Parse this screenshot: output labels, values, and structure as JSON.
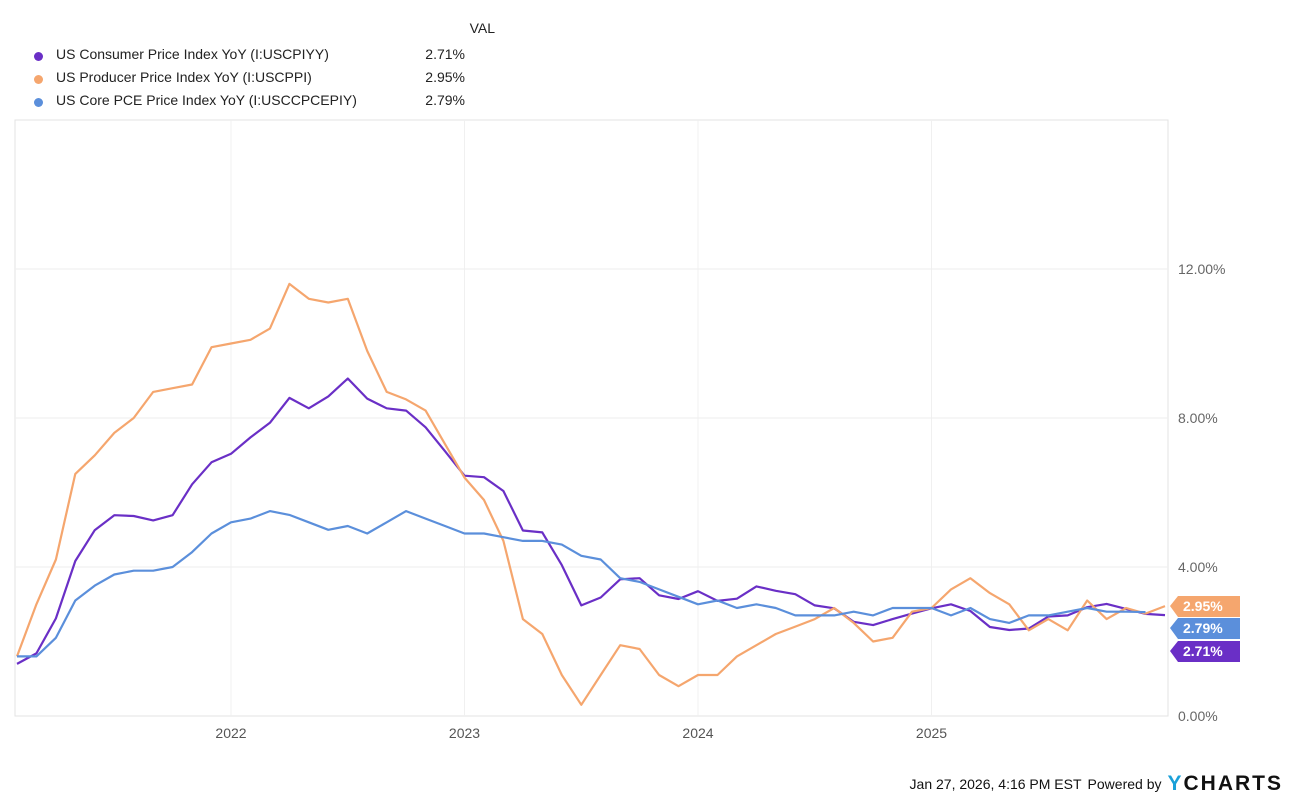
{
  "chart_data": {
    "type": "line",
    "title": "",
    "xlabel": "",
    "ylabel": "",
    "x_start": "2021-01",
    "x_frequency": "monthly",
    "x_ticks": [
      "2022",
      "2023",
      "2024",
      "2025"
    ],
    "y_ticks": [
      "0.00%",
      "4.00%",
      "8.00%",
      "12.00%"
    ],
    "ylim": [
      0,
      16
    ],
    "grid": true,
    "legend_placement": "top-left",
    "legend_header": "VAL",
    "series": [
      {
        "name": "US Consumer Price Index YoY (I:USCPIYY)",
        "last": "2.71%",
        "color": "#6a2fc6",
        "values": [
          1.4,
          1.68,
          2.62,
          4.16,
          4.99,
          5.39,
          5.37,
          5.25,
          5.39,
          6.22,
          6.81,
          7.04,
          7.48,
          7.87,
          8.54,
          8.26,
          8.58,
          9.06,
          8.52,
          8.26,
          8.2,
          7.75,
          7.11,
          6.45,
          6.41,
          6.04,
          4.98,
          4.93,
          4.05,
          2.97,
          3.18,
          3.67,
          3.7,
          3.24,
          3.14,
          3.35,
          3.09,
          3.15,
          3.48,
          3.36,
          3.27,
          2.97,
          2.89,
          2.53,
          2.44,
          2.6,
          2.75,
          2.89,
          3.0,
          2.82,
          2.39,
          2.31,
          2.35,
          2.67,
          2.7,
          2.92,
          3.01,
          null,
          2.74,
          2.71
        ]
      },
      {
        "name": "US Producer Price Index YoY (I:USCPPI)",
        "last": "2.95%",
        "color": "#f5a66e",
        "values": [
          1.6,
          3.0,
          4.2,
          6.5,
          7.0,
          7.6,
          8.0,
          8.7,
          8.8,
          8.9,
          9.9,
          10.0,
          10.1,
          10.4,
          11.6,
          11.2,
          11.1,
          11.2,
          9.8,
          8.7,
          8.5,
          8.2,
          7.3,
          6.4,
          5.8,
          4.7,
          2.6,
          2.2,
          1.1,
          0.3,
          1.1,
          1.9,
          1.8,
          1.1,
          0.8,
          1.1,
          1.1,
          1.6,
          1.9,
          2.2,
          2.4,
          2.6,
          2.9,
          2.5,
          2.0,
          2.1,
          2.8,
          2.9,
          3.4,
          3.7,
          3.3,
          3.0,
          2.3,
          2.6,
          2.3,
          3.1,
          2.6,
          2.9,
          2.75,
          2.95
        ]
      },
      {
        "name": "US Core PCE Price Index YoY (I:USCCPCEPIY)",
        "last": "2.79%",
        "color": "#5b8fdb",
        "values": [
          1.6,
          1.6,
          2.1,
          3.1,
          3.5,
          3.8,
          3.9,
          3.9,
          4.0,
          4.4,
          4.9,
          5.2,
          5.3,
          5.5,
          5.4,
          5.2,
          5.0,
          5.1,
          4.9,
          5.2,
          5.5,
          5.3,
          5.1,
          4.9,
          4.9,
          4.8,
          4.7,
          4.7,
          4.6,
          4.3,
          4.2,
          3.7,
          3.6,
          3.4,
          3.2,
          3.0,
          3.1,
          2.9,
          3.0,
          2.9,
          2.7,
          2.7,
          2.7,
          2.8,
          2.7,
          2.9,
          2.9,
          2.9,
          2.7,
          2.9,
          2.6,
          2.5,
          2.7,
          2.7,
          2.8,
          2.9,
          2.8,
          2.8,
          2.79
        ]
      }
    ]
  },
  "footer": {
    "timestamp": "Jan 27, 2026, 4:16 PM EST",
    "powered_by": "Powered by",
    "logo_text": "YCHARTS"
  }
}
